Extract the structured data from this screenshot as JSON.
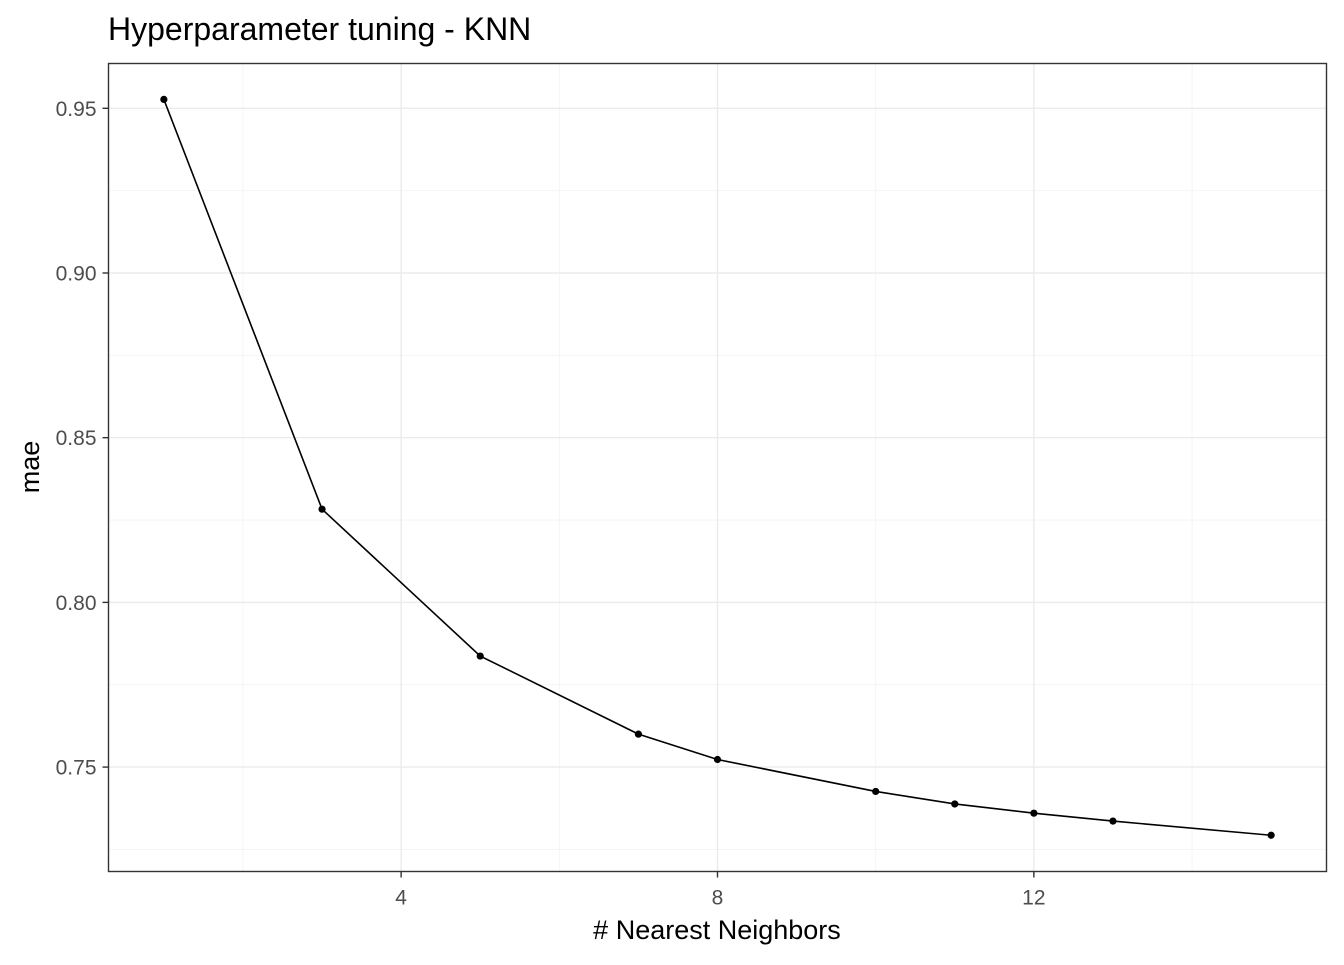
{
  "chart_data": {
    "type": "line",
    "title": "Hyperparameter tuning - KNN",
    "xlabel": "# Nearest Neighbors",
    "ylabel": "mae",
    "x": [
      1,
      3,
      5,
      7,
      8,
      10,
      11,
      12,
      13,
      15
    ],
    "series": [
      {
        "values": [
          0.9527,
          0.8283,
          0.7837,
          0.76,
          0.7523,
          0.7426,
          0.7388,
          0.736,
          0.7336,
          0.7293
        ]
      }
    ],
    "xlim": [
      0.3,
      15.7
    ],
    "ylim": [
      0.7183,
      0.9636
    ],
    "xticks": [
      4,
      8,
      12
    ],
    "xtick_labels": [
      "4",
      "8",
      "12"
    ],
    "yticks": [
      0.75,
      0.8,
      0.85,
      0.9,
      0.95
    ],
    "ytick_labels": [
      "0.75",
      "0.80",
      "0.85",
      "0.90",
      "0.95"
    ],
    "x_minor_ticks": [
      2,
      6,
      10,
      14
    ],
    "y_minor_ticks": [
      0.725,
      0.775,
      0.825,
      0.875,
      0.925
    ],
    "grid": true,
    "legend": "none",
    "colors": {
      "line": "#000000",
      "point": "#000000",
      "grid": "#ebebeb",
      "border": "#333333",
      "tick_text": "#4d4d4d"
    }
  }
}
